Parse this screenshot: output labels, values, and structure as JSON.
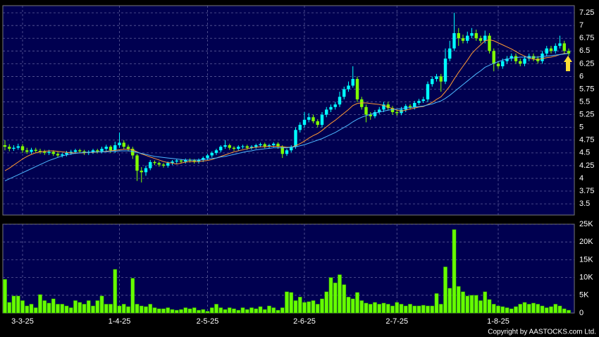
{
  "chart_data": [
    {
      "type": "candlestick",
      "up_color": "#00ffff",
      "down_color": "#80ff00",
      "ylim": [
        3.28,
        7.39
      ],
      "grid": true,
      "yticks": [
        3.5,
        3.75,
        4,
        4.25,
        4.5,
        4.75,
        5,
        5.25,
        5.5,
        5.75,
        6,
        6.25,
        6.5,
        6.75,
        7,
        7.25
      ],
      "open": [
        4.65,
        4.62,
        4.58,
        4.6,
        4.63,
        4.55,
        4.52,
        4.56,
        4.54,
        4.52,
        4.5,
        4.52,
        4.48,
        4.45,
        4.47,
        4.5,
        4.52,
        4.55,
        4.53,
        4.5,
        4.52,
        4.55,
        4.53,
        4.58,
        4.62,
        4.55,
        4.65,
        4.7,
        4.62,
        4.58,
        4.45,
        4.15,
        4.12,
        4.2,
        4.32,
        4.3,
        4.27,
        4.25,
        4.3,
        4.33,
        4.35,
        4.33,
        4.36,
        4.35,
        4.33,
        4.36,
        4.4,
        4.45,
        4.5,
        4.55,
        4.62,
        4.65,
        4.6,
        4.58,
        4.62,
        4.63,
        4.6,
        4.62,
        4.65,
        4.67,
        4.63,
        4.65,
        4.68,
        4.62,
        4.48,
        4.55,
        4.62,
        4.95,
        5.05,
        5.15,
        5.2,
        5.12,
        5.05,
        5.25,
        5.35,
        5.4,
        5.45,
        5.6,
        5.75,
        5.82,
        5.95,
        5.55,
        5.4,
        5.25,
        5.22,
        5.3,
        5.35,
        5.45,
        5.38,
        5.3,
        5.28,
        5.35,
        5.42,
        5.4,
        5.48,
        5.52,
        5.55,
        5.85,
        5.95,
        6.0,
        5.9,
        6.35,
        6.55,
        6.85,
        6.75,
        6.7,
        6.8,
        6.85,
        6.75,
        6.7,
        6.8,
        6.5,
        6.25,
        6.2,
        6.3,
        6.35,
        6.4,
        6.3,
        6.25,
        6.35,
        6.4,
        6.35,
        6.3,
        6.45,
        6.55,
        6.5,
        6.6,
        6.65,
        6.5
      ],
      "high": [
        4.75,
        4.67,
        4.65,
        4.68,
        4.67,
        4.6,
        4.6,
        4.6,
        4.58,
        4.56,
        4.56,
        4.55,
        4.52,
        4.5,
        4.54,
        4.56,
        4.58,
        4.58,
        4.56,
        4.55,
        4.58,
        4.58,
        4.62,
        4.66,
        4.65,
        4.72,
        4.9,
        4.75,
        4.66,
        4.62,
        4.48,
        4.22,
        4.25,
        4.36,
        4.35,
        4.33,
        4.3,
        4.33,
        4.36,
        4.38,
        4.38,
        4.39,
        4.39,
        4.38,
        4.39,
        4.43,
        4.48,
        4.53,
        4.58,
        4.65,
        4.75,
        4.68,
        4.63,
        4.65,
        4.66,
        4.66,
        4.65,
        4.68,
        4.7,
        4.7,
        4.68,
        4.71,
        4.71,
        4.65,
        4.58,
        4.65,
        5.0,
        5.1,
        5.3,
        5.28,
        5.25,
        5.16,
        5.3,
        5.4,
        5.45,
        5.5,
        5.7,
        5.8,
        5.9,
        6.2,
        6.0,
        5.6,
        5.45,
        5.3,
        5.34,
        5.4,
        5.5,
        5.5,
        5.42,
        5.35,
        5.4,
        5.46,
        5.46,
        5.52,
        5.56,
        5.6,
        5.9,
        6.0,
        6.05,
        6.05,
        6.55,
        6.7,
        7.25,
        6.95,
        6.82,
        6.88,
        6.95,
        6.92,
        6.8,
        6.9,
        6.85,
        6.55,
        6.3,
        6.35,
        6.4,
        6.45,
        6.45,
        6.35,
        6.4,
        6.45,
        6.45,
        6.4,
        6.5,
        6.6,
        6.6,
        6.65,
        6.8,
        6.7,
        6.55
      ],
      "low": [
        4.55,
        4.53,
        4.54,
        4.56,
        4.5,
        4.48,
        4.48,
        4.5,
        4.48,
        4.46,
        4.46,
        4.44,
        4.41,
        4.41,
        4.43,
        4.46,
        4.48,
        4.49,
        4.46,
        4.46,
        4.48,
        4.49,
        4.49,
        4.54,
        4.5,
        4.5,
        4.6,
        4.57,
        4.53,
        4.38,
        3.95,
        3.92,
        4.05,
        4.16,
        4.26,
        4.23,
        4.21,
        4.21,
        4.26,
        4.29,
        4.29,
        4.29,
        4.31,
        4.29,
        4.29,
        4.32,
        4.36,
        4.41,
        4.46,
        4.51,
        4.58,
        4.56,
        4.54,
        4.54,
        4.58,
        4.56,
        4.56,
        4.58,
        4.61,
        4.59,
        4.59,
        4.61,
        4.58,
        4.4,
        4.44,
        4.51,
        4.58,
        4.9,
        5.0,
        5.1,
        5.08,
        5.0,
        5.0,
        5.2,
        5.3,
        5.35,
        5.4,
        5.55,
        5.7,
        5.78,
        5.5,
        5.35,
        5.1,
        5.15,
        5.18,
        5.26,
        5.3,
        5.33,
        5.25,
        5.23,
        5.24,
        5.3,
        5.35,
        5.35,
        5.44,
        5.48,
        5.5,
        5.8,
        5.9,
        5.7,
        5.85,
        6.3,
        6.5,
        6.6,
        6.65,
        6.65,
        6.75,
        6.7,
        6.65,
        6.65,
        6.45,
        6.1,
        6.15,
        6.15,
        6.25,
        6.3,
        6.25,
        6.2,
        6.2,
        6.3,
        6.3,
        6.25,
        6.25,
        6.4,
        6.45,
        6.45,
        6.55,
        6.45,
        6.4
      ],
      "close": [
        4.62,
        4.58,
        4.6,
        4.63,
        4.55,
        4.52,
        4.56,
        4.54,
        4.52,
        4.5,
        4.52,
        4.48,
        4.45,
        4.47,
        4.5,
        4.52,
        4.55,
        4.53,
        4.5,
        4.52,
        4.55,
        4.53,
        4.58,
        4.62,
        4.55,
        4.65,
        4.7,
        4.62,
        4.58,
        4.45,
        4.15,
        4.12,
        4.2,
        4.32,
        4.3,
        4.27,
        4.25,
        4.3,
        4.33,
        4.35,
        4.33,
        4.36,
        4.35,
        4.33,
        4.36,
        4.4,
        4.45,
        4.5,
        4.55,
        4.62,
        4.65,
        4.6,
        4.58,
        4.62,
        4.63,
        4.6,
        4.62,
        4.65,
        4.67,
        4.63,
        4.65,
        4.68,
        4.62,
        4.48,
        4.55,
        4.62,
        4.95,
        5.05,
        5.15,
        5.2,
        5.12,
        5.05,
        5.25,
        5.35,
        5.4,
        5.45,
        5.6,
        5.75,
        5.82,
        5.95,
        5.55,
        5.4,
        5.25,
        5.22,
        5.3,
        5.35,
        5.45,
        5.38,
        5.3,
        5.28,
        5.35,
        5.42,
        5.4,
        5.48,
        5.52,
        5.55,
        5.85,
        5.95,
        6.0,
        5.9,
        6.35,
        6.55,
        6.85,
        6.75,
        6.7,
        6.8,
        6.85,
        6.75,
        6.7,
        6.8,
        6.5,
        6.25,
        6.2,
        6.3,
        6.35,
        6.4,
        6.3,
        6.25,
        6.35,
        6.4,
        6.35,
        6.3,
        6.45,
        6.55,
        6.5,
        6.6,
        6.65,
        6.5,
        6.45
      ],
      "lines": [
        {
          "color": "#ff9933",
          "values": [
            4.15,
            4.2,
            4.26,
            4.32,
            4.38,
            4.43,
            4.47,
            4.5,
            4.52,
            4.53,
            4.54,
            4.54,
            4.53,
            4.52,
            4.51,
            4.5,
            4.5,
            4.5,
            4.5,
            4.51,
            4.51,
            4.52,
            4.52,
            4.53,
            4.54,
            4.55,
            4.56,
            4.57,
            4.57,
            4.56,
            4.52,
            4.48,
            4.45,
            4.42,
            4.39,
            4.36,
            4.33,
            4.31,
            4.3,
            4.28,
            4.3,
            4.32,
            4.33,
            4.33,
            4.33,
            4.34,
            4.35,
            4.37,
            4.4,
            4.43,
            4.46,
            4.49,
            4.52,
            4.54,
            4.56,
            4.58,
            4.6,
            4.61,
            4.62,
            4.62,
            4.63,
            4.63,
            4.63,
            4.62,
            4.61,
            4.61,
            4.64,
            4.68,
            4.73,
            4.79,
            4.84,
            4.88,
            4.94,
            5.01,
            5.08,
            5.14,
            5.21,
            5.28,
            5.35,
            5.43,
            5.47,
            5.48,
            5.48,
            5.47,
            5.46,
            5.45,
            5.43,
            5.4,
            5.37,
            5.34,
            5.32,
            5.34,
            5.36,
            5.38,
            5.4,
            5.41,
            5.45,
            5.49,
            5.55,
            5.6,
            5.7,
            5.81,
            5.95,
            6.08,
            6.2,
            6.32,
            6.45,
            6.54,
            6.62,
            6.7,
            6.72,
            6.7,
            6.66,
            6.62,
            6.58,
            6.54,
            6.49,
            6.44,
            6.4,
            6.36,
            6.34,
            6.33,
            6.35,
            6.37,
            6.38,
            6.4,
            6.43,
            6.45,
            6.45
          ]
        },
        {
          "color": "#4db8ff",
          "values": [
            3.95,
            3.99,
            4.03,
            4.07,
            4.11,
            4.15,
            4.19,
            4.23,
            4.27,
            4.31,
            4.35,
            4.38,
            4.41,
            4.44,
            4.46,
            4.48,
            4.49,
            4.5,
            4.51,
            4.51,
            4.52,
            4.52,
            4.52,
            4.52,
            4.53,
            4.53,
            4.54,
            4.54,
            4.54,
            4.53,
            4.51,
            4.49,
            4.47,
            4.45,
            4.43,
            4.42,
            4.41,
            4.4,
            4.39,
            4.38,
            4.37,
            4.36,
            4.36,
            4.36,
            4.36,
            4.37,
            4.38,
            4.39,
            4.4,
            4.42,
            4.43,
            4.45,
            4.47,
            4.49,
            4.51,
            4.53,
            4.54,
            4.56,
            4.57,
            4.58,
            4.59,
            4.6,
            4.6,
            4.6,
            4.6,
            4.61,
            4.62,
            4.64,
            4.66,
            4.69,
            4.72,
            4.75,
            4.78,
            4.82,
            4.86,
            4.9,
            4.95,
            5.0,
            5.05,
            5.11,
            5.16,
            5.2,
            5.23,
            5.26,
            5.28,
            5.3,
            5.32,
            5.34,
            5.35,
            5.36,
            5.37,
            5.38,
            5.39,
            5.4,
            5.41,
            5.42,
            5.44,
            5.46,
            5.49,
            5.52,
            5.57,
            5.63,
            5.7,
            5.77,
            5.84,
            5.91,
            5.98,
            6.05,
            6.11,
            6.18,
            6.22,
            6.26,
            6.29,
            6.32,
            6.34,
            6.36,
            6.37,
            6.38,
            6.38,
            6.38,
            6.38,
            6.38,
            6.39,
            6.4,
            6.41,
            6.42,
            6.43,
            6.44,
            6.45
          ]
        }
      ]
    },
    {
      "type": "bar",
      "color": "#66ff00",
      "ylim": [
        0,
        25000
      ],
      "grid": true,
      "yticks": [
        0,
        {
          "value": 5000,
          "label": "5K"
        },
        {
          "value": 10000,
          "label": "10K"
        },
        {
          "value": 15000,
          "label": "15K"
        },
        {
          "value": 20000,
          "label": "20K"
        },
        {
          "value": 25000,
          "label": "25K"
        }
      ],
      "categories": [
        null,
        null,
        null,
        null,
        "3-3-25",
        null,
        null,
        null,
        null,
        null,
        null,
        null,
        null,
        null,
        null,
        null,
        null,
        null,
        null,
        null,
        null,
        null,
        null,
        null,
        null,
        null,
        "1-4-25",
        null,
        null,
        null,
        null,
        null,
        null,
        null,
        null,
        null,
        null,
        null,
        null,
        null,
        null,
        null,
        null,
        null,
        null,
        null,
        "2-5-25",
        null,
        null,
        null,
        null,
        null,
        null,
        null,
        null,
        null,
        null,
        null,
        null,
        null,
        null,
        null,
        null,
        null,
        null,
        null,
        null,
        null,
        "2-6-25",
        null,
        null,
        null,
        null,
        null,
        null,
        null,
        null,
        null,
        null,
        null,
        null,
        null,
        null,
        null,
        null,
        null,
        null,
        null,
        null,
        "2-7-25",
        null,
        null,
        null,
        null,
        null,
        null,
        null,
        null,
        null,
        null,
        null,
        null,
        null,
        null,
        null,
        null,
        null,
        null,
        null,
        null,
        null,
        null,
        "1-8-25",
        null,
        null,
        null,
        null,
        null,
        null,
        null,
        null,
        null,
        null,
        null,
        null,
        null,
        null,
        null,
        null
      ],
      "values": [
        9500,
        3000,
        4800,
        4800,
        3500,
        2000,
        2500,
        1500,
        5200,
        3500,
        2800,
        4000,
        2500,
        2500,
        2000,
        1500,
        3500,
        3000,
        2500,
        3500,
        2000,
        3500,
        4800,
        2500,
        2500,
        12300,
        2000,
        2500,
        1800,
        9800,
        2500,
        2000,
        1800,
        2500,
        1500,
        1200,
        1200,
        1500,
        1000,
        800,
        1000,
        1500,
        1200,
        1500,
        800,
        1000,
        500,
        1500,
        2500,
        1500,
        1000,
        1500,
        1200,
        800,
        1500,
        1000,
        1500,
        1200,
        1800,
        1000,
        2000,
        1500,
        800,
        1500,
        6000,
        5800,
        3500,
        4500,
        3000,
        3200,
        3500,
        2500,
        4000,
        6000,
        10000,
        8500,
        10800,
        8000,
        4500,
        4000,
        5800,
        3500,
        2800,
        2500,
        3000,
        2500,
        2800,
        2500,
        2000,
        3000,
        2500,
        2000,
        2500,
        2000,
        2000,
        2200,
        2000,
        2000,
        5500,
        2500,
        13000,
        7000,
        23500,
        7500,
        6000,
        4800,
        5000,
        5000,
        3500,
        6000,
        3800,
        2500,
        2000,
        1800,
        1500,
        1200,
        1800,
        2500,
        3000,
        2500,
        2800,
        2500,
        2000,
        1500,
        1800,
        2500,
        2000,
        1200,
        800
      ],
      "source": "Copyright by AASTOCKS.com Ltd."
    }
  ]
}
